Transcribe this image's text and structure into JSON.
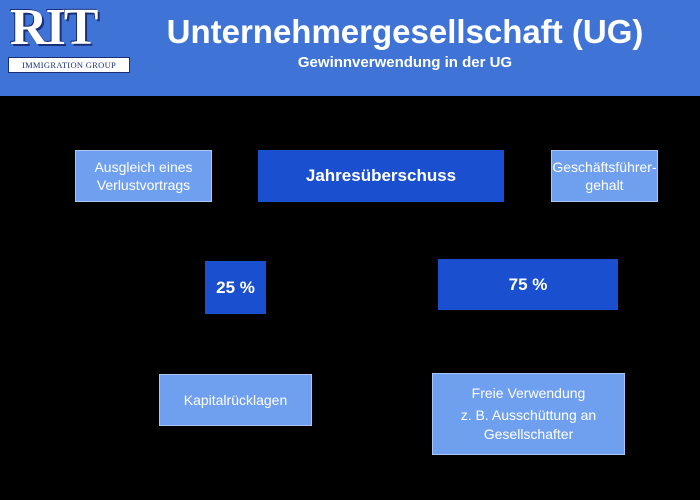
{
  "logo": {
    "text": "RIT",
    "subtext": "IMMIGRATION GROUP"
  },
  "header": {
    "title": "Unternehmergesellschaft (UG)",
    "subtitle": "Gewinnverwendung in der UG"
  },
  "diagram": {
    "nodes": {
      "jahresueberschuss": "Jahresüberschuss",
      "verlustvortrag": {
        "line1": "Ausgleich eines",
        "line2": "Verlustvortrags"
      },
      "geschaeftsfuehrergehalt": {
        "line1": "Geschäftsführer-",
        "line2": "gehalt"
      },
      "anteil_ruecklage": "25 %",
      "anteil_frei": "75 %",
      "kapitalruecklagen": "Kapitalrücklagen",
      "freie_verwendung": {
        "line1": "Freie Verwendung",
        "line2": "z. B. Ausschüttung an",
        "line3": "Gesellschafter"
      }
    }
  },
  "colors": {
    "header_bg": "#3f74d6",
    "page_bg": "#000000",
    "dark_box": "#1a4fd0",
    "light_box": "#6f9fef"
  }
}
